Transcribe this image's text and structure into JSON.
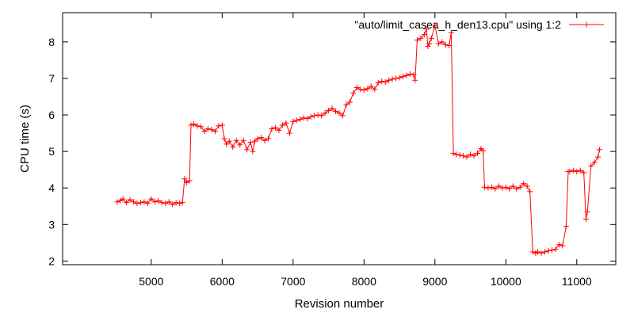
{
  "chart_data": {
    "type": "line",
    "xlabel": "Revision number",
    "ylabel": "CPU time (s)",
    "xlim": [
      3750,
      11550
    ],
    "ylim": [
      1.9,
      8.8
    ],
    "xticks": [
      5000,
      6000,
      7000,
      8000,
      9000,
      10000,
      11000
    ],
    "yticks": [
      2,
      3,
      4,
      5,
      6,
      7,
      8
    ],
    "xtick_labels": [
      "5000",
      "6000",
      "7000",
      "8000",
      "9000",
      "10000",
      "11000"
    ],
    "ytick_labels": [
      "2",
      "3",
      "4",
      "5",
      "6",
      "7",
      "8"
    ],
    "legend_position": "top-right",
    "colors": {
      "series": "#ff0000",
      "axis": "#000000"
    },
    "series": [
      {
        "name": "\"auto/limit_casea_h_den13.cpu\" using 1:2",
        "marker": "plus",
        "x": [
          4520,
          4560,
          4600,
          4650,
          4700,
          4750,
          4800,
          4850,
          4900,
          4950,
          5000,
          5050,
          5100,
          5150,
          5200,
          5250,
          5300,
          5350,
          5400,
          5440,
          5470,
          5500,
          5540,
          5560,
          5600,
          5650,
          5700,
          5750,
          5800,
          5850,
          5900,
          5950,
          6000,
          6030,
          6060,
          6100,
          6150,
          6200,
          6250,
          6300,
          6350,
          6400,
          6430,
          6460,
          6500,
          6550,
          6600,
          6650,
          6700,
          6750,
          6800,
          6850,
          6900,
          6950,
          7000,
          7050,
          7100,
          7150,
          7200,
          7250,
          7300,
          7350,
          7400,
          7450,
          7500,
          7550,
          7600,
          7650,
          7700,
          7750,
          7800,
          7850,
          7900,
          7950,
          8000,
          8050,
          8100,
          8150,
          8200,
          8250,
          8300,
          8350,
          8400,
          8450,
          8500,
          8550,
          8600,
          8650,
          8700,
          8720,
          8750,
          8800,
          8850,
          8880,
          8900,
          8920,
          8950,
          9000,
          9050,
          9100,
          9150,
          9200,
          9230,
          9260,
          9300,
          9350,
          9400,
          9450,
          9500,
          9550,
          9600,
          9650,
          9680,
          9700,
          9750,
          9800,
          9850,
          9900,
          9950,
          10000,
          10050,
          10100,
          10150,
          10200,
          10250,
          10300,
          10340,
          10380,
          10420,
          10450,
          10500,
          10550,
          10600,
          10650,
          10700,
          10750,
          10800,
          10850,
          10880,
          10900,
          10950,
          11000,
          11050,
          11100,
          11130,
          11150,
          11200,
          11250,
          11300,
          11320
        ],
        "y": [
          3.62,
          3.65,
          3.7,
          3.6,
          3.68,
          3.62,
          3.58,
          3.6,
          3.62,
          3.58,
          3.7,
          3.62,
          3.65,
          3.6,
          3.58,
          3.62,
          3.55,
          3.6,
          3.58,
          3.6,
          4.25,
          4.15,
          4.2,
          5.72,
          5.75,
          5.7,
          5.68,
          5.55,
          5.62,
          5.6,
          5.55,
          5.7,
          5.72,
          5.35,
          5.2,
          5.28,
          5.12,
          5.3,
          5.18,
          5.3,
          5.05,
          5.25,
          5.0,
          5.28,
          5.35,
          5.38,
          5.3,
          5.35,
          5.62,
          5.65,
          5.58,
          5.72,
          5.78,
          5.5,
          5.82,
          5.85,
          5.88,
          5.92,
          5.9,
          5.95,
          5.98,
          6.0,
          5.98,
          6.05,
          6.12,
          6.18,
          6.1,
          6.05,
          5.98,
          6.28,
          6.35,
          6.6,
          6.75,
          6.7,
          6.68,
          6.72,
          6.78,
          6.7,
          6.88,
          6.92,
          6.9,
          6.95,
          6.98,
          7.0,
          7.02,
          7.05,
          7.08,
          7.12,
          7.1,
          6.95,
          8.05,
          8.1,
          8.2,
          8.35,
          7.88,
          7.95,
          8.1,
          8.45,
          7.95,
          8.0,
          7.92,
          7.9,
          8.25,
          4.95,
          4.92,
          4.9,
          4.88,
          4.85,
          4.92,
          4.88,
          4.95,
          5.08,
          5.02,
          4.02,
          4.0,
          4.02,
          3.98,
          4.05,
          4.0,
          4.02,
          3.98,
          4.05,
          3.98,
          4.02,
          4.12,
          4.05,
          3.9,
          2.25,
          2.22,
          2.25,
          2.22,
          2.25,
          2.28,
          2.3,
          2.32,
          2.45,
          2.42,
          2.95,
          4.45,
          4.45,
          4.48,
          4.45,
          4.48,
          4.42,
          3.15,
          3.35,
          4.6,
          4.7,
          4.85,
          5.05
        ]
      }
    ]
  }
}
